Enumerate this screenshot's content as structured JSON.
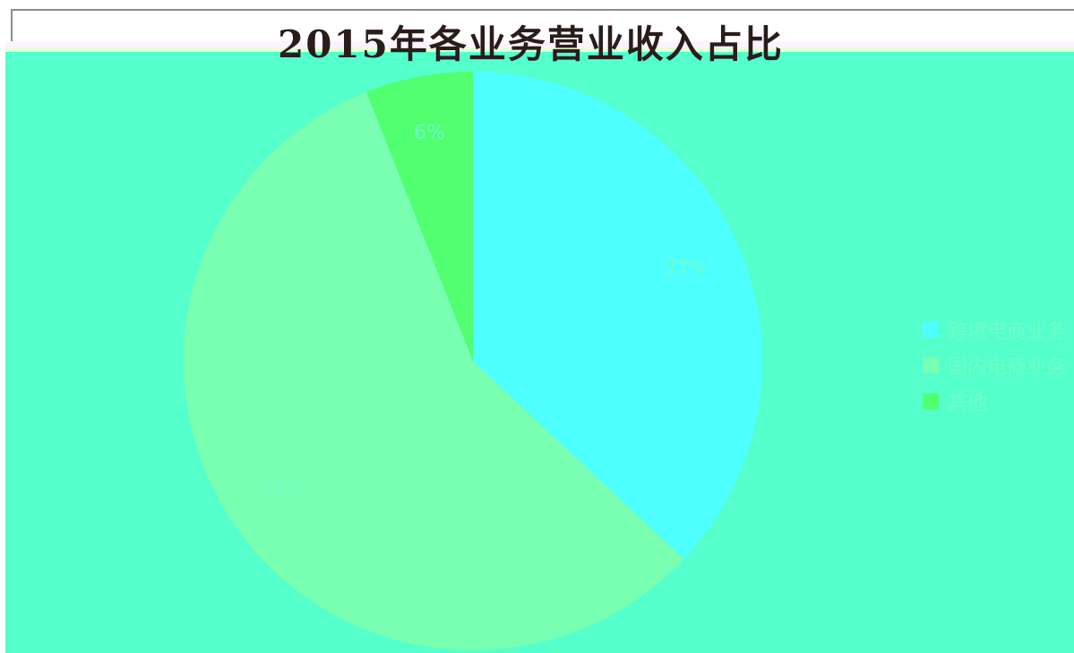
{
  "chart_data": {
    "type": "pie",
    "title": "2015年各业务营业收入占比",
    "categories": [
      "跨境电商业务",
      "国内电商业务",
      "其他"
    ],
    "values": [
      37,
      57,
      6
    ],
    "value_labels": [
      "37%",
      "57%",
      "6%"
    ],
    "colors": [
      "#4dffff",
      "#78ffb1",
      "#51ff71"
    ],
    "legend": "right",
    "start_angle": "top",
    "direction": "clockwise"
  },
  "colors": {
    "background": "#55ffcc",
    "frame": "#8c8c8c",
    "label_text": "#6fffc7"
  }
}
